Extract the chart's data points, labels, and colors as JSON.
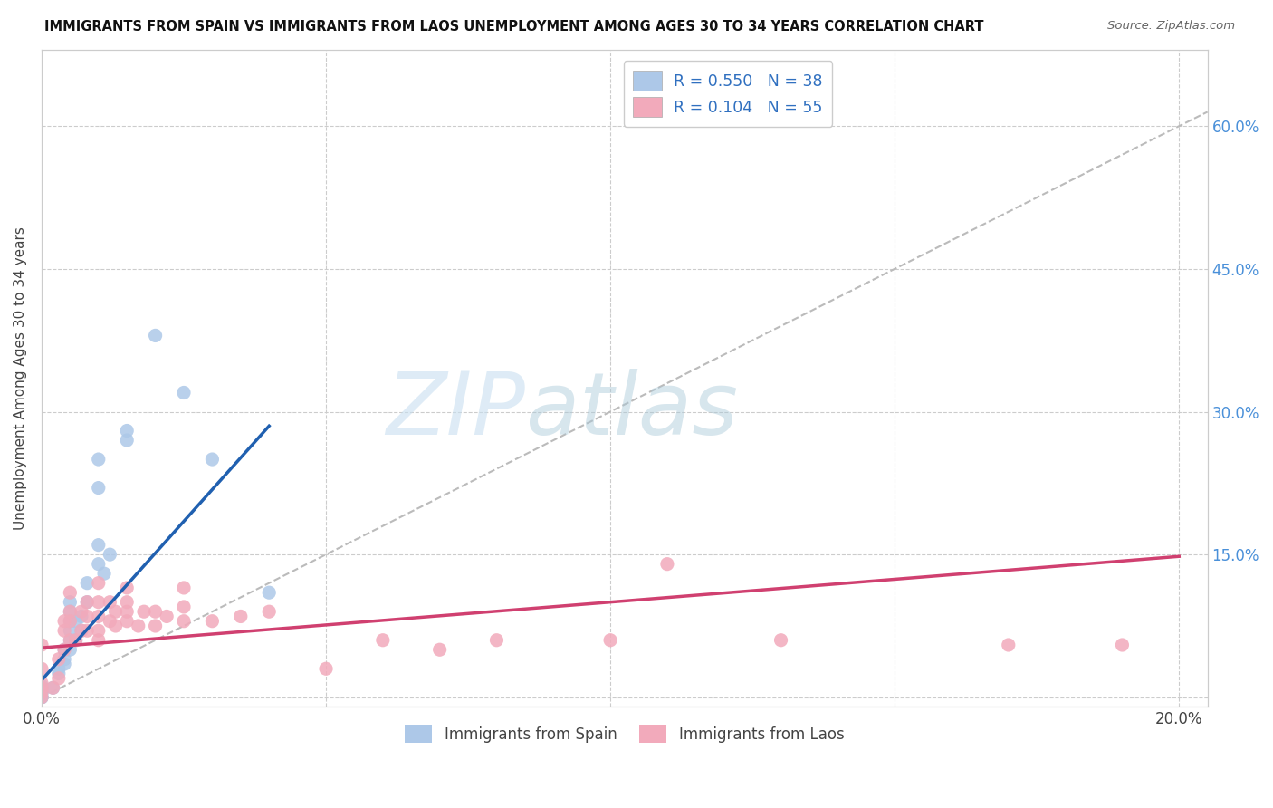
{
  "title": "IMMIGRANTS FROM SPAIN VS IMMIGRANTS FROM LAOS UNEMPLOYMENT AMONG AGES 30 TO 34 YEARS CORRELATION CHART",
  "source": "Source: ZipAtlas.com",
  "ylabel": "Unemployment Among Ages 30 to 34 years",
  "xlim": [
    0.0,
    0.205
  ],
  "ylim": [
    -0.01,
    0.68
  ],
  "xtick_positions": [
    0.0,
    0.05,
    0.1,
    0.15,
    0.2
  ],
  "xtick_labels": [
    "0.0%",
    "",
    "",
    "",
    "20.0%"
  ],
  "ytick_positions": [
    0.0,
    0.15,
    0.3,
    0.45,
    0.6
  ],
  "ytick_labels": [
    "",
    "15.0%",
    "30.0%",
    "45.0%",
    "60.0%"
  ],
  "spain_color": "#adc8e8",
  "laos_color": "#f2aabb",
  "spain_line_color": "#2060b0",
  "laos_line_color": "#d04070",
  "legend_text_color": "#3070c0",
  "spain_R": 0.55,
  "spain_N": 38,
  "laos_R": 0.104,
  "laos_N": 55,
  "legend_label_spain": "Immigrants from Spain",
  "legend_label_laos": "Immigrants from Laos",
  "watermark_zip": "ZIP",
  "watermark_atlas": "atlas",
  "background_color": "#ffffff",
  "grid_color": "#cccccc",
  "spine_color": "#cccccc",
  "spain_x": [
    0.0,
    0.0,
    0.0,
    0.0,
    0.0,
    0.0,
    0.0,
    0.0,
    0.002,
    0.003,
    0.003,
    0.004,
    0.004,
    0.004,
    0.005,
    0.005,
    0.005,
    0.005,
    0.005,
    0.005,
    0.006,
    0.006,
    0.007,
    0.007,
    0.008,
    0.008,
    0.01,
    0.01,
    0.01,
    0.01,
    0.011,
    0.012,
    0.015,
    0.015,
    0.02,
    0.025,
    0.03,
    0.04
  ],
  "spain_y": [
    0.0,
    0.0,
    0.0,
    0.005,
    0.005,
    0.008,
    0.01,
    0.012,
    0.01,
    0.025,
    0.03,
    0.035,
    0.04,
    0.05,
    0.05,
    0.06,
    0.07,
    0.08,
    0.09,
    0.1,
    0.06,
    0.08,
    0.07,
    0.085,
    0.1,
    0.12,
    0.14,
    0.16,
    0.22,
    0.25,
    0.13,
    0.15,
    0.27,
    0.28,
    0.38,
    0.32,
    0.25,
    0.11
  ],
  "laos_x": [
    0.0,
    0.0,
    0.0,
    0.0,
    0.0,
    0.0,
    0.002,
    0.003,
    0.003,
    0.004,
    0.004,
    0.004,
    0.005,
    0.005,
    0.005,
    0.005,
    0.006,
    0.007,
    0.007,
    0.008,
    0.008,
    0.008,
    0.01,
    0.01,
    0.01,
    0.01,
    0.01,
    0.012,
    0.012,
    0.013,
    0.013,
    0.015,
    0.015,
    0.015,
    0.015,
    0.017,
    0.018,
    0.02,
    0.02,
    0.022,
    0.025,
    0.025,
    0.025,
    0.03,
    0.035,
    0.04,
    0.05,
    0.06,
    0.07,
    0.08,
    0.1,
    0.11,
    0.13,
    0.17,
    0.19
  ],
  "laos_y": [
    0.0,
    0.005,
    0.01,
    0.015,
    0.03,
    0.055,
    0.01,
    0.02,
    0.04,
    0.05,
    0.07,
    0.08,
    0.06,
    0.08,
    0.09,
    0.11,
    0.06,
    0.07,
    0.09,
    0.07,
    0.085,
    0.1,
    0.06,
    0.07,
    0.085,
    0.1,
    0.12,
    0.08,
    0.1,
    0.075,
    0.09,
    0.08,
    0.09,
    0.1,
    0.115,
    0.075,
    0.09,
    0.075,
    0.09,
    0.085,
    0.08,
    0.095,
    0.115,
    0.08,
    0.085,
    0.09,
    0.03,
    0.06,
    0.05,
    0.06,
    0.06,
    0.14,
    0.06,
    0.055,
    0.055
  ],
  "spain_line_x": [
    0.0,
    0.04
  ],
  "spain_line_y": [
    0.018,
    0.285
  ],
  "laos_line_x": [
    0.0,
    0.2
  ],
  "laos_line_y": [
    0.052,
    0.148
  ],
  "diag_line_x": [
    0.0,
    0.205
  ],
  "diag_line_y": [
    0.0,
    0.615
  ]
}
